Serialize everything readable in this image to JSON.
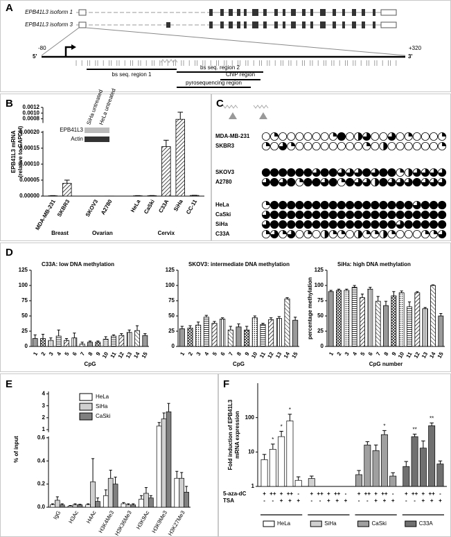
{
  "panel_letters": [
    "A",
    "B",
    "C",
    "D",
    "E",
    "F"
  ],
  "diagram": {
    "isoforms": [
      "EPB41L3 isoform 1",
      "EPB41L3 isoform 3"
    ],
    "start": "-80",
    "end": "+320",
    "five_prime": "5'",
    "three_prime": "3'",
    "regions": [
      "bs seq. region 1",
      "bs seq. region 2",
      "ChIP region",
      "pyrosequencing region"
    ]
  },
  "methylation": {
    "cell_lines": [
      "MDA-MB-231",
      "SKBR3",
      "SKOV3",
      "A2780",
      "HeLa",
      "CaSki",
      "SiHa",
      "C33A"
    ],
    "circles": [
      [
        0,
        0.25,
        0,
        0,
        0,
        0,
        0,
        0,
        0.25,
        1,
        0,
        0.5,
        0.75,
        0,
        0,
        0.75,
        0,
        0.25,
        0,
        0,
        0,
        0.25
      ],
      [
        0.25,
        0,
        0.75,
        0.25,
        0,
        0,
        0,
        0,
        0,
        0,
        0,
        0,
        0.25,
        0,
        0.5,
        0,
        0,
        0,
        0,
        0,
        0,
        0.25
      ],
      [
        1,
        1,
        1,
        1,
        1,
        1,
        0.75,
        1,
        1,
        0.75,
        0.75,
        0.75,
        1,
        0.75,
        1,
        1,
        0.25,
        0.5,
        0.75,
        0.75,
        0.75,
        0.75
      ],
      [
        0.75,
        1,
        0.75,
        1,
        0.25,
        1,
        1,
        0.75,
        1,
        0.25,
        1,
        0.75,
        0.75,
        0.5,
        1,
        0.75,
        0.75,
        0.75,
        1,
        0.75,
        0.75,
        0.75
      ],
      [
        0.25,
        1,
        1,
        1,
        1,
        1,
        1,
        1,
        1,
        1,
        1,
        1,
        1,
        1,
        1,
        1,
        1,
        1,
        0.75,
        1,
        1,
        1
      ],
      [
        0.75,
        1,
        1,
        1,
        1,
        1,
        1,
        1,
        1,
        1,
        1,
        1,
        1,
        1,
        1,
        1,
        1,
        1,
        1,
        1,
        1,
        1
      ],
      [
        0.75,
        1,
        1,
        1,
        1,
        1,
        1,
        1,
        1,
        1,
        1,
        1,
        1,
        1,
        1,
        1,
        0.75,
        1,
        1,
        1,
        1,
        1
      ],
      [
        0.25,
        0.75,
        0.25,
        0.75,
        0,
        0.25,
        0,
        0.5,
        0.25,
        0.25,
        0,
        0.5,
        0.25,
        0.25,
        0.5,
        0.25,
        0,
        0,
        0,
        0.25,
        0.25,
        0.75
      ]
    ]
  },
  "chart_data": [
    {
      "type": "bar",
      "ylabel": [
        "EPB41L3 mRNA",
        "(relative to GAPDH)"
      ],
      "groups": [
        {
          "name": "Breast",
          "categories": [
            "MDA-MB-231",
            "SKBR3"
          ]
        },
        {
          "name": "Ovarian",
          "categories": [
            "SKOV3",
            "A2780"
          ]
        },
        {
          "name": "Cervix",
          "categories": [
            "HeLa",
            "CaSki",
            "C33A",
            "SiHa",
            "CC-11"
          ]
        }
      ],
      "values": [
        1e-06,
        4e-05,
        3e-07,
        3e-07,
        1e-06,
        1.2e-06,
        0.000155,
        0.00078,
        2e-06
      ],
      "errors": [
        5e-07,
        1e-05,
        0,
        0,
        5e-07,
        5e-07,
        2e-05,
        0.00025,
        5e-07
      ],
      "ylim": [
        0,
        0.0012
      ],
      "ybreak": [
        0.0002,
        0.0007
      ],
      "yticks": [
        {
          "value": 0,
          "label": "0.00000"
        },
        {
          "value": 5e-05,
          "label": "0.00005"
        },
        {
          "value": 0.0001,
          "label": "0.00010"
        },
        {
          "value": 0.00015,
          "label": "0.00015"
        },
        {
          "value": 0.0002,
          "label": "0.00020"
        },
        0.0008,
        {
          "value": 0.001,
          "label": "0.0010"
        },
        0.0012
      ],
      "inset": {
        "lanes": [
          "SiHa untreated",
          "HeLa untreated"
        ],
        "bands": [
          "EPB41L3",
          "Actin"
        ]
      }
    },
    {
      "type": "bar",
      "title": "C33A: low DNA methylation",
      "xlabel": "CpG",
      "categories": [
        "1",
        "2",
        "3",
        "4",
        "5",
        "6",
        "7",
        "8",
        "9",
        "10",
        "11",
        "12",
        "13",
        "14",
        "15"
      ],
      "values": [
        13,
        13,
        10,
        17,
        10,
        14,
        4,
        7,
        7,
        12,
        17,
        18,
        23,
        26,
        18
      ],
      "errors": [
        6,
        7,
        4,
        10,
        3,
        8,
        3,
        2,
        2,
        4,
        2,
        3,
        4,
        8,
        3
      ],
      "ylim": [
        0,
        125
      ],
      "yticks": [
        0,
        25,
        50,
        75,
        100,
        125
      ]
    },
    {
      "type": "bar",
      "title": "SKOV3: intermediate DNA methylation",
      "xlabel": "CpG",
      "categories": [
        "1",
        "2",
        "3",
        "4",
        "5",
        "6",
        "7",
        "8",
        "9",
        "10",
        "11",
        "12",
        "13",
        "14",
        "15"
      ],
      "values": [
        29,
        30,
        35,
        48,
        38,
        45,
        27,
        32,
        27,
        47,
        36,
        44,
        46,
        78,
        43
      ],
      "errors": [
        4,
        4,
        5,
        3,
        3,
        2,
        6,
        5,
        6,
        3,
        2,
        3,
        3,
        2,
        5
      ],
      "ylim": [
        0,
        125
      ],
      "yticks": [
        0,
        25,
        50,
        75,
        100,
        125
      ]
    },
    {
      "type": "bar",
      "title": "SiHa: high DNA methylation",
      "xlabel": "CpG number",
      "ylabel": [
        "percentage methylation"
      ],
      "categories": [
        "1",
        "2",
        "3",
        "4",
        "5",
        "6",
        "7",
        "8",
        "9",
        "10",
        "11",
        "12",
        "13",
        "14",
        "15"
      ],
      "values": [
        90,
        92,
        92,
        97,
        80,
        94,
        74,
        67,
        83,
        88,
        65,
        88,
        62,
        100,
        50
      ],
      "errors": [
        2,
        2,
        2,
        3,
        6,
        3,
        8,
        7,
        7,
        3,
        8,
        2,
        2,
        1,
        4
      ],
      "ylim": [
        0,
        125
      ],
      "yticks": [
        0,
        25,
        50,
        75,
        100,
        125
      ]
    },
    {
      "type": "grouped_bar",
      "ylabel": [
        "% of input"
      ],
      "categories": [
        "IgG",
        "H3Ac",
        "H4Ac",
        "H3K4Me3",
        "H3K36Me3",
        "H3K9Ac",
        "H3K9Me3",
        "H3K27Me3"
      ],
      "series": [
        {
          "name": "HeLa",
          "color": "#ffffff",
          "values": [
            0.02,
            0.01,
            0.02,
            0.1,
            0.03,
            0.07,
            1.3,
            0.25
          ],
          "errors": [
            0.01,
            0.005,
            0.01,
            0.05,
            0.01,
            0.03,
            0.3,
            0.06
          ]
        },
        {
          "name": "SiHa",
          "color": "#d0d0d0",
          "values": [
            0.06,
            0.02,
            0.22,
            0.25,
            0.02,
            0.12,
            1.9,
            0.25
          ],
          "errors": [
            0.03,
            0.01,
            0.2,
            0.07,
            0.01,
            0.05,
            0.5,
            0.05
          ]
        },
        {
          "name": "CaSki",
          "color": "#808080",
          "values": [
            0.02,
            0.02,
            0.05,
            0.2,
            0.02,
            0.08,
            2.5,
            0.13
          ],
          "errors": [
            0.01,
            0.005,
            0.03,
            0.06,
            0.01,
            0.02,
            0.7,
            0.05
          ]
        }
      ],
      "ylim": [
        0,
        4.2
      ],
      "ybreak": [
        0.6,
        0.9
      ],
      "yticks": [
        {
          "value": 0,
          "label": "0.0"
        },
        0.2,
        0.4,
        0.6,
        1,
        2,
        3,
        4
      ],
      "legend": "top-left"
    },
    {
      "type": "grouped_bar",
      "ylabel": [
        "Fold induction of EPB41L3",
        "mRNA expression"
      ],
      "yscale": "log",
      "conditions": [
        {
          "name": "5-aza-dC",
          "levels": [
            "+",
            "++",
            "+",
            "++",
            "-"
          ]
        },
        {
          "name": "TSA",
          "levels": [
            "-",
            "-",
            "+",
            "+",
            "+"
          ]
        }
      ],
      "series": [
        {
          "name": "HeLa",
          "color": "#ffffff",
          "values": [
            6,
            12,
            28,
            80,
            1.5
          ],
          "errors": [
            2.5,
            5,
            12,
            45,
            0.4
          ],
          "stars": [
            null,
            "*",
            "*",
            "*",
            null
          ]
        },
        {
          "name": "SiHa",
          "color": "#d0d0d0",
          "values": [
            1.7,
            1,
            1,
            1,
            1
          ],
          "errors": [
            0.3,
            0,
            0,
            0,
            0
          ],
          "stars": [
            null,
            null,
            null,
            null,
            null
          ]
        },
        {
          "name": "CaSki",
          "color": "#a0a0a0",
          "values": [
            2.2,
            16,
            11,
            32,
            2
          ],
          "errors": [
            0.7,
            4,
            5,
            10,
            0.5
          ],
          "stars": [
            null,
            null,
            null,
            "*",
            null
          ]
        },
        {
          "name": "C33A",
          "color": "#707070",
          "values": [
            3.8,
            28,
            13,
            58,
            4.5
          ],
          "errors": [
            1.5,
            5,
            8,
            12,
            1
          ],
          "stars": [
            null,
            "**",
            null,
            "**",
            null
          ]
        }
      ],
      "ylim": [
        1,
        1000
      ],
      "yticks": [
        1,
        10,
        100
      ],
      "legend": "bottom"
    }
  ]
}
